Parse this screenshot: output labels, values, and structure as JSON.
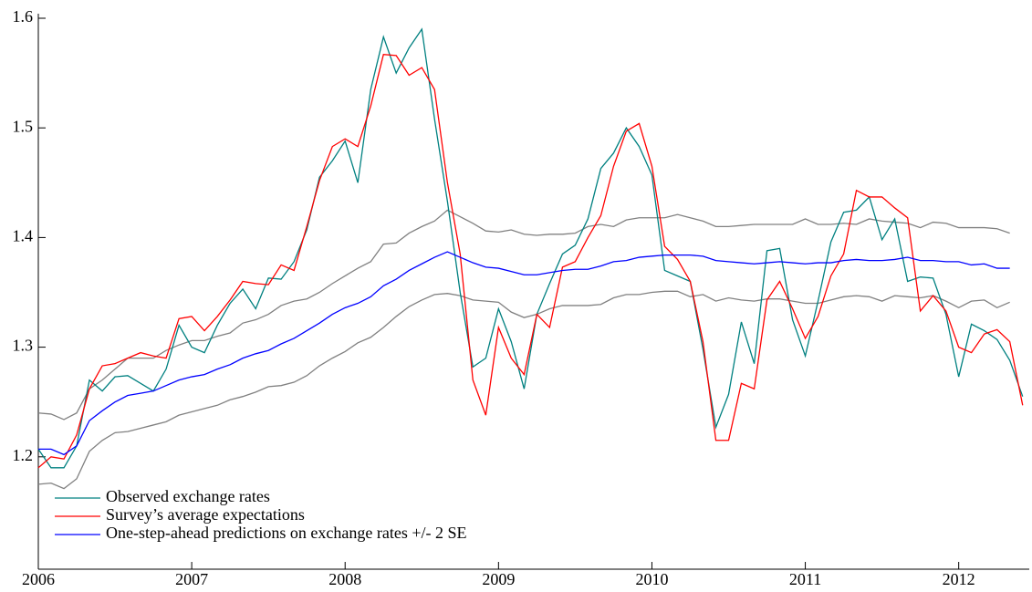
{
  "chart_data": {
    "type": "line",
    "x": [
      2006,
      2006.083,
      2006.167,
      2006.25,
      2006.333,
      2006.417,
      2006.5,
      2006.583,
      2006.667,
      2006.75,
      2006.833,
      2006.917,
      2007,
      2007.083,
      2007.167,
      2007.25,
      2007.333,
      2007.417,
      2007.5,
      2007.583,
      2007.667,
      2007.75,
      2007.833,
      2007.917,
      2008,
      2008.083,
      2008.167,
      2008.25,
      2008.333,
      2008.417,
      2008.5,
      2008.583,
      2008.667,
      2008.75,
      2008.833,
      2008.917,
      2009,
      2009.083,
      2009.167,
      2009.25,
      2009.333,
      2009.417,
      2009.5,
      2009.583,
      2009.667,
      2009.75,
      2009.833,
      2009.917,
      2010,
      2010.083,
      2010.167,
      2010.25,
      2010.333,
      2010.417,
      2010.5,
      2010.583,
      2010.667,
      2010.75,
      2010.833,
      2010.917,
      2011,
      2011.083,
      2011.167,
      2011.25,
      2011.333,
      2011.417,
      2011.5,
      2011.583,
      2011.667,
      2011.75,
      2011.833,
      2011.917,
      2012,
      2012.083,
      2012.167,
      2012.25,
      2012.333,
      2012.417
    ],
    "series": [
      {
        "color": "#808080",
        "values": [
          1.24,
          1.239,
          1.234,
          1.24,
          1.262,
          1.27,
          1.28,
          1.29,
          1.29,
          1.29,
          1.297,
          1.302,
          1.306,
          1.306,
          1.31,
          1.313,
          1.322,
          1.325,
          1.33,
          1.338,
          1.342,
          1.344,
          1.35,
          1.358,
          1.365,
          1.372,
          1.378,
          1.394,
          1.395,
          1.404,
          1.41,
          1.415,
          1.425,
          1.419,
          1.413,
          1.406,
          1.405,
          1.407,
          1.403,
          1.402,
          1.403,
          1.403,
          1.404,
          1.41,
          1.412,
          1.41,
          1.416,
          1.418,
          1.418,
          1.418,
          1.421,
          1.418,
          1.415,
          1.41,
          1.41,
          1.411,
          1.412,
          1.412,
          1.412,
          1.412,
          1.417,
          1.412,
          1.412,
          1.413,
          1.412,
          1.417,
          1.415,
          1.414,
          1.413,
          1.409,
          1.414,
          1.413,
          1.409,
          1.409,
          1.409,
          1.408,
          1.404,
          null
        ]
      },
      {
        "color": "#808080",
        "values": [
          1.175,
          1.176,
          1.171,
          1.18,
          1.205,
          1.215,
          1.222,
          1.223,
          1.226,
          1.229,
          1.232,
          1.238,
          1.241,
          1.244,
          1.247,
          1.252,
          1.255,
          1.259,
          1.264,
          1.265,
          1.268,
          1.274,
          1.283,
          1.29,
          1.296,
          1.304,
          1.309,
          1.318,
          1.328,
          1.337,
          1.343,
          1.348,
          1.349,
          1.347,
          1.343,
          1.342,
          1.341,
          1.332,
          1.327,
          1.33,
          1.335,
          1.338,
          1.338,
          1.338,
          1.339,
          1.345,
          1.348,
          1.348,
          1.35,
          1.351,
          1.351,
          1.346,
          1.348,
          1.342,
          1.345,
          1.343,
          1.342,
          1.344,
          1.344,
          1.342,
          1.34,
          1.34,
          1.343,
          1.346,
          1.347,
          1.346,
          1.342,
          1.347,
          1.346,
          1.345,
          1.347,
          1.342,
          1.336,
          1.342,
          1.343,
          1.336,
          1.341,
          null
        ]
      },
      {
        "name": "Observed exchange rates",
        "color": "#008080",
        "values": [
          1.207,
          1.19,
          1.19,
          1.21,
          1.27,
          1.26,
          1.273,
          1.274,
          1.267,
          1.26,
          1.28,
          1.32,
          1.3,
          1.295,
          1.32,
          1.34,
          1.353,
          1.335,
          1.363,
          1.362,
          1.378,
          1.407,
          1.455,
          1.47,
          1.488,
          1.45,
          1.535,
          1.583,
          1.55,
          1.573,
          1.59,
          1.508,
          1.433,
          1.35,
          1.282,
          1.29,
          1.335,
          1.305,
          1.262,
          1.33,
          1.358,
          1.385,
          1.393,
          1.417,
          1.463,
          1.477,
          1.5,
          1.483,
          1.457,
          1.37,
          1.365,
          1.36,
          1.298,
          1.227,
          1.257,
          1.323,
          1.285,
          1.388,
          1.39,
          1.325,
          1.292,
          1.342,
          1.396,
          1.423,
          1.425,
          1.437,
          1.398,
          1.417,
          1.36,
          1.364,
          1.363,
          1.33,
          1.273,
          1.321,
          1.315,
          1.307,
          1.288,
          1.255
        ]
      },
      {
        "name": "Survey’s average expectations",
        "color": "#ff0000",
        "values": [
          1.19,
          1.2,
          1.198,
          1.22,
          1.262,
          1.283,
          1.285,
          1.29,
          1.295,
          1.292,
          1.29,
          1.326,
          1.328,
          1.315,
          1.328,
          1.343,
          1.36,
          1.358,
          1.357,
          1.375,
          1.37,
          1.41,
          1.452,
          1.483,
          1.49,
          1.483,
          1.52,
          1.567,
          1.566,
          1.548,
          1.555,
          1.535,
          1.45,
          1.385,
          1.27,
          1.238,
          1.318,
          1.29,
          1.275,
          1.33,
          1.318,
          1.373,
          1.378,
          1.4,
          1.42,
          1.465,
          1.497,
          1.504,
          1.465,
          1.392,
          1.38,
          1.36,
          1.305,
          1.215,
          1.215,
          1.267,
          1.262,
          1.343,
          1.36,
          1.335,
          1.308,
          1.328,
          1.365,
          1.385,
          1.443,
          1.437,
          1.437,
          1.427,
          1.418,
          1.333,
          1.347,
          1.333,
          1.3,
          1.295,
          1.312,
          1.316,
          1.305,
          1.247
        ]
      },
      {
        "name": "One-step-ahead predictions on exchange rates +/- 2 SE",
        "color": "#0000ff",
        "values": [
          1.207,
          1.207,
          1.202,
          1.21,
          1.233,
          1.242,
          1.25,
          1.256,
          1.258,
          1.26,
          1.265,
          1.27,
          1.273,
          1.275,
          1.28,
          1.284,
          1.29,
          1.294,
          1.297,
          1.303,
          1.308,
          1.315,
          1.322,
          1.33,
          1.336,
          1.34,
          1.346,
          1.356,
          1.362,
          1.37,
          1.376,
          1.382,
          1.387,
          1.382,
          1.377,
          1.373,
          1.372,
          1.369,
          1.366,
          1.366,
          1.368,
          1.37,
          1.371,
          1.371,
          1.374,
          1.378,
          1.379,
          1.382,
          1.383,
          1.384,
          1.384,
          1.384,
          1.383,
          1.379,
          1.378,
          1.377,
          1.376,
          1.377,
          1.378,
          1.377,
          1.376,
          1.377,
          1.377,
          1.379,
          1.38,
          1.379,
          1.379,
          1.38,
          1.382,
          1.379,
          1.379,
          1.378,
          1.378,
          1.375,
          1.376,
          1.372,
          1.372,
          null
        ]
      }
    ],
    "xlim": [
      2006,
      2012.46
    ],
    "xticks": [
      2006,
      2007,
      2008,
      2009,
      2010,
      2011,
      2012
    ],
    "ylim": [
      1.1,
      1.6
    ],
    "yticks": [
      1.2,
      1.3,
      1.4,
      1.5,
      1.6
    ],
    "legend": "lower left"
  }
}
